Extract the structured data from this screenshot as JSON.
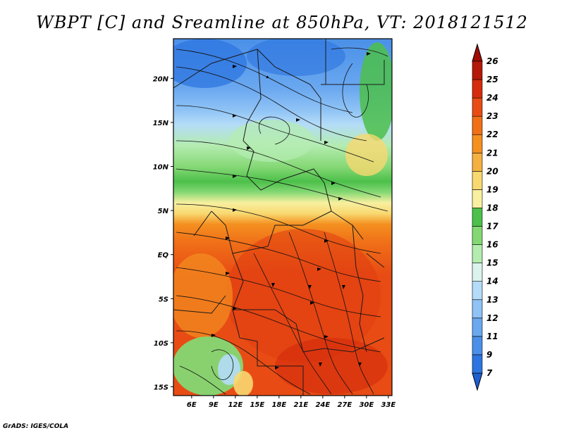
{
  "title": "WBPT [C] and Sreamline at 850hPa, VT: 2018121512",
  "credit": "GrADS: IGES/COLA",
  "chart_data": {
    "type": "heatmap",
    "title": "WBPT [C] and Sreamline at 850hPa, VT: 2018121512",
    "variable": "Wet-bulb potential temperature with streamlines",
    "level": "850hPa",
    "valid_time": "2018121512",
    "x_range_deg": [
      3.5,
      33.5
    ],
    "y_range_deg": [
      -16,
      24.5
    ],
    "x_ticks": [
      {
        "value": 6,
        "label": "6E"
      },
      {
        "value": 9,
        "label": "9E"
      },
      {
        "value": 12,
        "label": "12E"
      },
      {
        "value": 15,
        "label": "15E"
      },
      {
        "value": 18,
        "label": "18E"
      },
      {
        "value": 21,
        "label": "21E"
      },
      {
        "value": 24,
        "label": "24E"
      },
      {
        "value": 27,
        "label": "27E"
      },
      {
        "value": 30,
        "label": "30E"
      },
      {
        "value": 33,
        "label": "33E"
      }
    ],
    "y_ticks": [
      {
        "value": 20,
        "label": "20N"
      },
      {
        "value": 15,
        "label": "15N"
      },
      {
        "value": 10,
        "label": "10N"
      },
      {
        "value": 5,
        "label": "5N"
      },
      {
        "value": 0,
        "label": "EQ"
      },
      {
        "value": -5,
        "label": "5S"
      },
      {
        "value": -10,
        "label": "10S"
      },
      {
        "value": -15,
        "label": "15S"
      }
    ],
    "colorbar": {
      "levels": [
        7,
        9,
        11,
        12,
        13,
        14,
        15,
        16,
        17,
        18,
        19,
        20,
        21,
        22,
        23,
        24,
        25,
        26
      ],
      "labels": [
        "7",
        "9",
        "11",
        "12",
        "13",
        "14",
        "15",
        "16",
        "17",
        "18",
        "19",
        "20",
        "21",
        "22",
        "23",
        "24",
        "25",
        "26"
      ],
      "colors": [
        "#1f5fd0",
        "#2d75e0",
        "#4a90e8",
        "#6aa8f0",
        "#8fc3f5",
        "#b4dcf8",
        "#dcf2ee",
        "#b4ecb0",
        "#84d874",
        "#4cc04a",
        "#f8f0a0",
        "#f8d870",
        "#f4b040",
        "#f49020",
        "#f07018",
        "#e84c14",
        "#d42c0c",
        "#b41808",
        "#a00c04"
      ]
    },
    "color_scale_zones": [
      {
        "from_lat": 24.5,
        "to_lat": 17,
        "value_range": [
          11,
          14
        ],
        "description": "blue"
      },
      {
        "from_lat": 17,
        "to_lat": 13,
        "value_range": [
          14,
          16
        ],
        "description": "light blue / cyan"
      },
      {
        "from_lat": 13,
        "to_lat": 7,
        "value_range": [
          16,
          18
        ],
        "description": "green"
      },
      {
        "from_lat": 7,
        "to_lat": 4.5,
        "value_range": [
          19,
          21
        ],
        "description": "yellow / orange"
      },
      {
        "from_lat": 4.5,
        "to_lat": -16,
        "value_range": [
          22,
          25
        ],
        "description": "orange / red"
      }
    ]
  }
}
